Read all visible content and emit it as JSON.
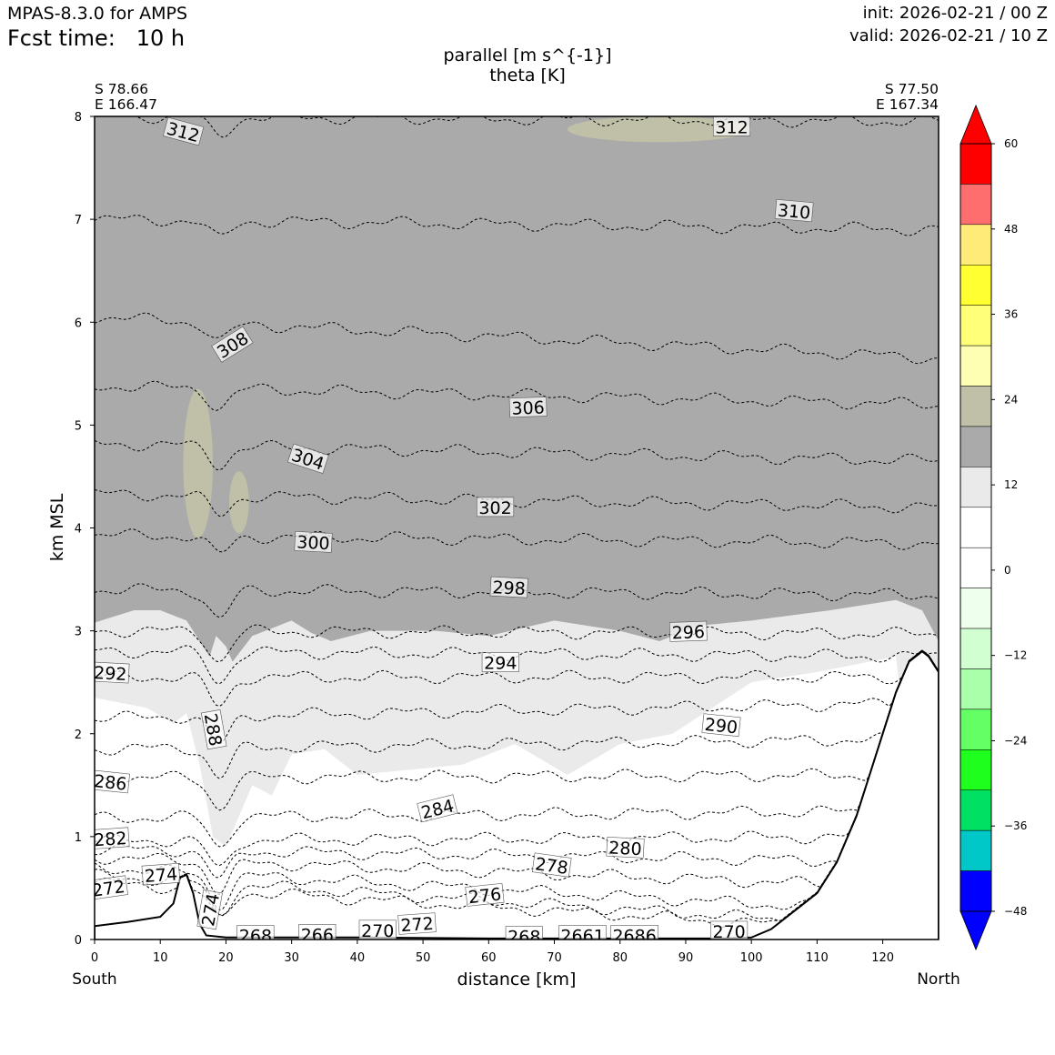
{
  "header": {
    "model": "MPAS-8.3.0 for AMPS",
    "fcst_label": "Fcst time:",
    "fcst_value": "10 h",
    "init": "init: 2026-02-21 / 00 Z",
    "valid": "valid: 2026-02-21 / 10 Z"
  },
  "chart_data": {
    "type": "contour-cross-section",
    "title": "parallel [m s^{-1}]",
    "subtitle": "theta [K]",
    "xlabel": "distance [km]",
    "ylabel": "km MSL",
    "xlim": [
      0,
      128.5
    ],
    "ylim": [
      0,
      8
    ],
    "xticks": [
      0,
      10,
      20,
      30,
      40,
      50,
      60,
      70,
      80,
      90,
      100,
      110,
      120
    ],
    "yticks": [
      0,
      1,
      2,
      3,
      4,
      5,
      6,
      7,
      8
    ],
    "endpoints": {
      "left": {
        "lat": "S 78.66",
        "lon": "E 166.47",
        "side": "South"
      },
      "right": {
        "lat": "S 77.50",
        "lon": "E 167.34",
        "side": "North"
      }
    },
    "terrain": [
      [
        0,
        0.13
      ],
      [
        5,
        0.17
      ],
      [
        10,
        0.22
      ],
      [
        12,
        0.35
      ],
      [
        13,
        0.6
      ],
      [
        14,
        0.63
      ],
      [
        15,
        0.45
      ],
      [
        16,
        0.15
      ],
      [
        17,
        0.04
      ],
      [
        20,
        0.02
      ],
      [
        40,
        0.02
      ],
      [
        60,
        0.01
      ],
      [
        95,
        0.01
      ],
      [
        100,
        0.02
      ],
      [
        103,
        0.1
      ],
      [
        106,
        0.25
      ],
      [
        110,
        0.45
      ],
      [
        113,
        0.75
      ],
      [
        116,
        1.2
      ],
      [
        119,
        1.8
      ],
      [
        122,
        2.4
      ],
      [
        124,
        2.7
      ],
      [
        126,
        2.8
      ],
      [
        127,
        2.75
      ],
      [
        128.5,
        2.6
      ]
    ],
    "wind_fill": {
      "levels": [
        -48,
        -12,
        0,
        12,
        24
      ],
      "above_12_base": [
        [
          0,
          3.08
        ],
        [
          6,
          3.2
        ],
        [
          10,
          3.2
        ],
        [
          14,
          3.1
        ],
        [
          16,
          2.9
        ],
        [
          17.5,
          2.75
        ],
        [
          18.5,
          2.95
        ],
        [
          20,
          2.85
        ],
        [
          21,
          2.7
        ],
        [
          24,
          2.95
        ],
        [
          30,
          3.1
        ],
        [
          33,
          2.98
        ],
        [
          36,
          2.9
        ],
        [
          42,
          3.0
        ],
        [
          52,
          3.0
        ],
        [
          60,
          2.95
        ],
        [
          70,
          3.1
        ],
        [
          80,
          3.0
        ],
        [
          86,
          2.9
        ],
        [
          92,
          3.05
        ],
        [
          100,
          3.1
        ],
        [
          112,
          3.2
        ],
        [
          122,
          3.3
        ],
        [
          126,
          3.2
        ],
        [
          128.5,
          2.9
        ]
      ],
      "below_0_top": [
        [
          0,
          2.35
        ],
        [
          8,
          2.25
        ],
        [
          12,
          2.1
        ],
        [
          14,
          2.2
        ],
        [
          16,
          1.7
        ],
        [
          18,
          1.0
        ],
        [
          20,
          0.9
        ],
        [
          24,
          1.5
        ],
        [
          27,
          1.4
        ],
        [
          30,
          1.8
        ],
        [
          35,
          1.85
        ],
        [
          40,
          1.6
        ],
        [
          48,
          1.65
        ],
        [
          56,
          1.7
        ],
        [
          64,
          1.9
        ],
        [
          72,
          1.6
        ],
        [
          80,
          1.9
        ],
        [
          88,
          2.0
        ],
        [
          100,
          2.5
        ],
        [
          110,
          2.6
        ],
        [
          118,
          2.7
        ],
        [
          122,
          2.75
        ]
      ],
      "patches_above_24": [
        {
          "x": [
            13.5,
            18
          ],
          "y": [
            3.9,
            5.35
          ]
        },
        {
          "x": [
            20.5,
            23.5
          ],
          "y": [
            3.95,
            4.55
          ]
        },
        {
          "x": [
            72,
            100
          ],
          "y": [
            7.75,
            8.0
          ]
        }
      ],
      "colorbar": {
        "ticks": [
          60,
          48,
          36,
          24,
          12,
          0,
          -12,
          -24,
          -36,
          -48
        ],
        "colors": [
          "#ff0000",
          "#ff6e6e",
          "#ffeb78",
          "#ffff32",
          "#ffff78",
          "#ffffb4",
          "#c0c0a8",
          "#aaaaaa",
          "#eaeaea",
          "#ffffff",
          "#ffffff",
          "#eeffee",
          "#d2ffd2",
          "#aaffaa",
          "#64ff64",
          "#1eff1e",
          "#00e164",
          "#00c8c8",
          "#0000ff"
        ]
      }
    },
    "theta_contours": [
      {
        "level": 272,
        "y_start": 0.55,
        "y_end": 0.05
      },
      {
        "level": 274,
        "y_start": 0.62,
        "y_end": 0.1
      },
      {
        "level": 276,
        "y_start": 0.7,
        "y_end": 0.25
      },
      {
        "level": 278,
        "y_start": 0.8,
        "y_end": 0.5
      },
      {
        "level": 280,
        "y_start": 0.88,
        "y_end": 0.75
      },
      {
        "level": 282,
        "y_start": 0.96,
        "y_end": 1.0
      },
      {
        "level": 284,
        "y_start": 1.18,
        "y_end": 1.25
      },
      {
        "level": 286,
        "y_start": 1.57,
        "y_end": 1.6
      },
      {
        "level": 288,
        "y_start": 1.85,
        "y_end": 1.95
      },
      {
        "level": 290,
        "y_start": 2.15,
        "y_end": 2.3
      },
      {
        "level": 292,
        "y_start": 2.55,
        "y_end": 2.55
      },
      {
        "level": 294,
        "y_start": 2.8,
        "y_end": 2.75
      },
      {
        "level": 296,
        "y_start": 3.0,
        "y_end": 2.97
      },
      {
        "level": 298,
        "y_start": 3.4,
        "y_end": 3.35
      },
      {
        "level": 300,
        "y_start": 3.93,
        "y_end": 3.85
      },
      {
        "level": 302,
        "y_start": 4.33,
        "y_end": 4.2
      },
      {
        "level": 304,
        "y_start": 4.82,
        "y_end": 4.65
      },
      {
        "level": 306,
        "y_start": 5.38,
        "y_end": 5.2
      },
      {
        "level": 308,
        "y_start": 6.05,
        "y_end": 5.65
      },
      {
        "level": 310,
        "y_start": 7.0,
        "y_end": 6.9
      },
      {
        "level": 312,
        "y_start": 8.0,
        "y_end": 7.95
      }
    ],
    "contour_labels": [
      {
        "text": "312",
        "x": 13.5,
        "y": 7.85,
        "angle": 15
      },
      {
        "text": "312",
        "x": 97,
        "y": 7.9,
        "angle": 0
      },
      {
        "text": "310",
        "x": 106.5,
        "y": 7.08,
        "angle": 5
      },
      {
        "text": "308",
        "x": 21,
        "y": 5.78,
        "angle": -32
      },
      {
        "text": "306",
        "x": 66,
        "y": 5.17,
        "angle": -2
      },
      {
        "text": "304",
        "x": 32.5,
        "y": 4.67,
        "angle": 18
      },
      {
        "text": "302",
        "x": 61,
        "y": 4.2,
        "angle": 0
      },
      {
        "text": "300",
        "x": 33.3,
        "y": 3.86,
        "angle": 3
      },
      {
        "text": "298",
        "x": 63.1,
        "y": 3.42,
        "angle": 3
      },
      {
        "text": "296",
        "x": 90.4,
        "y": 2.99,
        "angle": -2
      },
      {
        "text": "294",
        "x": 61.8,
        "y": 2.69,
        "angle": 0
      },
      {
        "text": "292",
        "x": 2.4,
        "y": 2.59,
        "angle": 3
      },
      {
        "text": "290",
        "x": 95.4,
        "y": 2.08,
        "angle": 6
      },
      {
        "text": "288",
        "x": 18.1,
        "y": 2.04,
        "angle": 80
      },
      {
        "text": "286",
        "x": 2.4,
        "y": 1.53,
        "angle": 6
      },
      {
        "text": "284",
        "x": 52.2,
        "y": 1.27,
        "angle": -14
      },
      {
        "text": "282",
        "x": 2.4,
        "y": 0.98,
        "angle": -4
      },
      {
        "text": "280",
        "x": 80.8,
        "y": 0.89,
        "angle": 3
      },
      {
        "text": "278",
        "x": 69.6,
        "y": 0.72,
        "angle": 8
      },
      {
        "text": "276",
        "x": 59.4,
        "y": 0.43,
        "angle": -6
      },
      {
        "text": "274",
        "x": 10.1,
        "y": 0.63,
        "angle": -4
      },
      {
        "text": "274",
        "x": 17.6,
        "y": 0.29,
        "angle": -80
      },
      {
        "text": "272",
        "x": 2.1,
        "y": 0.5,
        "angle": -8
      },
      {
        "text": "272",
        "x": 49.1,
        "y": 0.15,
        "angle": -4
      },
      {
        "text": "270",
        "x": 43.1,
        "y": 0.09,
        "angle": 0
      },
      {
        "text": "270",
        "x": 96.6,
        "y": 0.08,
        "angle": 0
      },
      {
        "text": "268",
        "x": 24.5,
        "y": 0.04,
        "angle": 0
      },
      {
        "text": "266",
        "x": 33.9,
        "y": 0.05,
        "angle": 0
      },
      {
        "text": "268",
        "x": 65.4,
        "y": 0.03,
        "angle": 0
      },
      {
        "text": "2661",
        "x": 74.3,
        "y": 0.04,
        "angle": 0
      },
      {
        "text": "2686",
        "x": 82.2,
        "y": 0.04,
        "angle": 0
      }
    ]
  }
}
